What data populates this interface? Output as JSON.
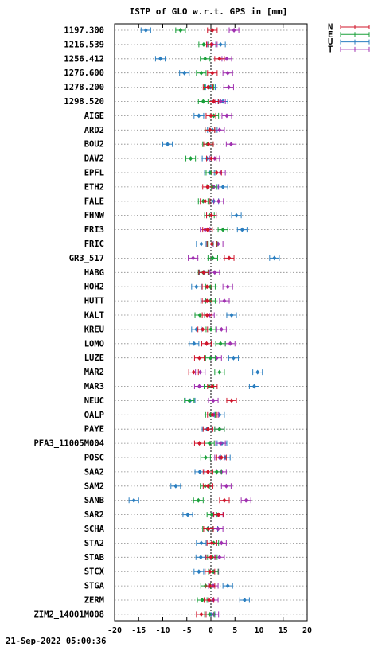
{
  "chart_data": {
    "type": "scatter",
    "title": "ISTP of GLO w.r.t. GPS in [mm]",
    "xlim": [
      -20,
      20
    ],
    "xticks": [
      -20,
      -15,
      -10,
      -5,
      0,
      5,
      10,
      15,
      20
    ],
    "grid": "horizontal dotted",
    "reference_line": 0,
    "legend_position": "top-right outside",
    "series": [
      {
        "name": "N",
        "color": "#d0142a"
      },
      {
        "name": "E",
        "color": "#1aa03a"
      },
      {
        "name": "U",
        "color": "#2a7ec0"
      },
      {
        "name": "T",
        "color": "#a030b0"
      }
    ],
    "error_half_width": 1,
    "categories": [
      "1197.300",
      "1216.539",
      "1256.412",
      "1276.600",
      "1278.200",
      "1298.520",
      "AIGE",
      "ARD2",
      "BOU2",
      "DAV2",
      "EPFL",
      "ETH2",
      "FALE",
      "FHNW",
      "FRI3",
      "FRIC",
      "GR3_517",
      "HABG",
      "HOH2",
      "HUTT",
      "KALT",
      "KREU",
      "LOMO",
      "LUZE",
      "MAR2",
      "MAR3",
      "NEUC",
      "OALP",
      "PAYE",
      "PFA3_11005M004",
      "POSC",
      "SAA2",
      "SAM2",
      "SANB",
      "SAR2",
      "SCHA",
      "STA2",
      "STAB",
      "STCX",
      "STGA",
      "ZERM",
      "ZIM2_14001M008"
    ],
    "values": {
      "N": [
        0.3,
        0.1,
        1.8,
        0.3,
        -0.6,
        0.6,
        0.0,
        -0.2,
        -0.5,
        0.1,
        1.2,
        -0.7,
        -1.2,
        0.1,
        -0.7,
        0.2,
        3.8,
        -1.5,
        -0.8,
        -0.8,
        -0.8,
        -1.7,
        -0.9,
        -2.4,
        -3.6,
        0.3,
        4.3,
        0.3,
        -0.6,
        -2.4,
        2.2,
        -0.6,
        -0.6,
        2.8,
        1.6,
        -0.5,
        0.2,
        0.0,
        -0.2,
        -0.2,
        -0.4,
        -2.0
      ],
      "E": [
        -6.3,
        -1.5,
        -1.2,
        -2.0,
        -0.4,
        -1.6,
        0.6,
        -0.2,
        -0.7,
        -4.2,
        0.0,
        0.2,
        -1.6,
        -0.3,
        2.5,
        0.3,
        0.4,
        -1.6,
        -0.1,
        -0.1,
        -2.3,
        0.0,
        2.0,
        -0.1,
        1.8,
        -0.4,
        -4.5,
        -0.1,
        1.8,
        -0.3,
        -1.1,
        1.2,
        -1.2,
        -2.6,
        0.2,
        -0.7,
        0.6,
        0.3,
        0.5,
        -1.1,
        -1.8,
        -0.3
      ],
      "U": [
        -13.5,
        2.0,
        -10.5,
        -5.5,
        -0.1,
        2.5,
        -2.5,
        0.3,
        -9.0,
        -0.8,
        -0.3,
        2.5,
        0.6,
        5.3,
        6.5,
        -2.0,
        13.2,
        -1.4,
        -3.0,
        -1.1,
        4.3,
        -3.0,
        -3.5,
        4.7,
        9.7,
        9.0,
        -4.3,
        1.8,
        -0.8,
        2.3,
        3.0,
        -2.3,
        -7.3,
        -16.0,
        -4.8,
        0.4,
        -2.0,
        -2.1,
        -2.5,
        3.5,
        7.0,
        0.0
      ],
      "T": [
        4.8,
        0.3,
        3.3,
        3.5,
        3.7,
        2.0,
        3.3,
        1.8,
        4.2,
        0.8,
        2.0,
        0.6,
        1.6,
        0.1,
        -1.2,
        1.5,
        -3.7,
        0.8,
        3.5,
        2.8,
        -0.3,
        2.2,
        4.0,
        1.2,
        -2.2,
        -2.4,
        0.5,
        0.6,
        1.8,
        2.0,
        1.8,
        2.2,
        3.2,
        7.3,
        1.5,
        1.5,
        2.2,
        1.8,
        0.6,
        0.5,
        0.5,
        0.6
      ]
    }
  },
  "timestamp": "21-Sep-2022 05:00:36"
}
